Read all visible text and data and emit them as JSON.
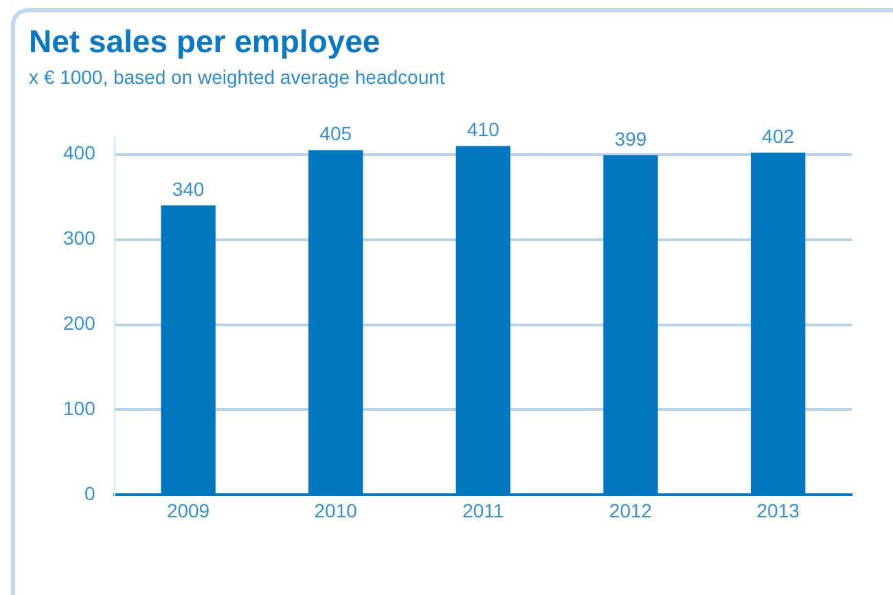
{
  "chart_data": {
    "type": "bar",
    "title": "Net sales per employee",
    "subtitle": "x € 1000, based on weighted average headcount",
    "categories": [
      "2009",
      "2010",
      "2011",
      "2012",
      "2013"
    ],
    "values": [
      340,
      405,
      410,
      399,
      402
    ],
    "color": "#0077c0",
    "ylim": [
      0,
      420
    ],
    "yticks": [
      0,
      100,
      200,
      300,
      400
    ],
    "grid": "y",
    "data_labels": true
  }
}
